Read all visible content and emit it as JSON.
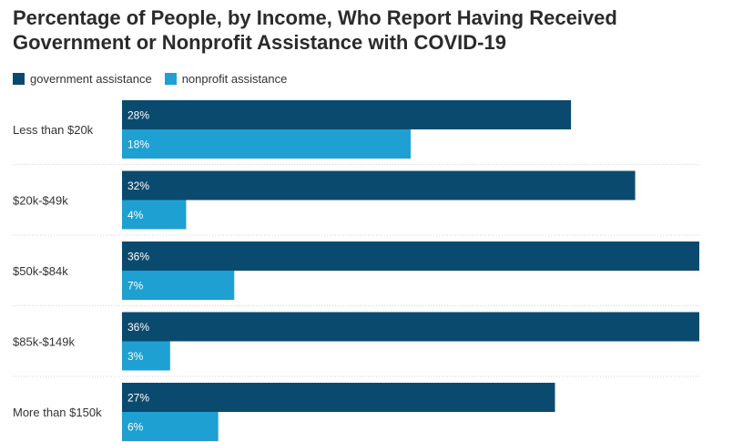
{
  "chart_data": {
    "type": "bar",
    "orientation": "horizontal",
    "title_lines": [
      "Percentage of People, by Income, Who Report Having Received",
      "Government or Nonprofit Assistance with COVID-19"
    ],
    "categories": [
      "Less than $20k",
      "$20k-$49k",
      "$50k-$84k",
      "$85k-$149k",
      "More than $150k"
    ],
    "series": [
      {
        "name": "government assistance",
        "color": "#0b4a6f",
        "values": [
          28,
          32,
          36,
          36,
          27
        ],
        "labels": [
          "28%",
          "32%",
          "36%",
          "36%",
          "27%"
        ]
      },
      {
        "name": "nonprofit assistance",
        "color": "#1ea0d2",
        "values": [
          18,
          4,
          7,
          3,
          6
        ],
        "labels": [
          "18%",
          "4%",
          "7%",
          "3%",
          "6%"
        ]
      }
    ],
    "xlim": [
      0,
      36
    ],
    "legend_position": "top-left",
    "grid": false,
    "separators": true
  }
}
